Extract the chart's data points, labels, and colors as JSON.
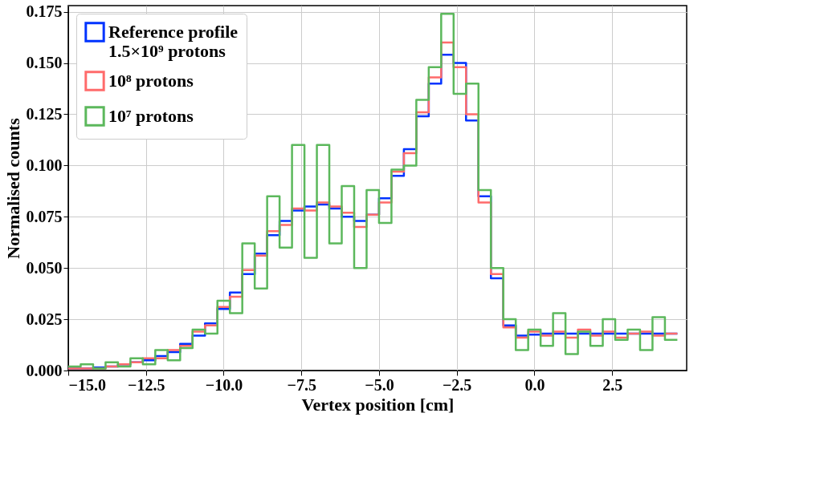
{
  "chart_data": {
    "type": "histogram",
    "xlabel": "Vertex position [cm]",
    "ylabel": "Normalised counts",
    "bins": [
      -15.0,
      -14.6,
      -14.2,
      -13.8,
      -13.4,
      -13.0,
      -12.6,
      -12.2,
      -11.8,
      -11.4,
      -11.0,
      -10.6,
      -10.2,
      -9.8,
      -9.4,
      -9.0,
      -8.6,
      -8.2,
      -7.8,
      -7.4,
      -7.0,
      -6.6,
      -6.2,
      -5.8,
      -5.4,
      -5.0,
      -4.6,
      -4.2,
      -3.8,
      -3.4,
      -3.0,
      -2.6,
      -2.2,
      -1.8,
      -1.4,
      -1.0,
      -0.6,
      -0.2,
      0.2,
      0.6,
      1.0,
      1.4,
      1.8,
      2.2,
      2.6,
      3.0,
      3.4,
      3.8,
      4.2,
      4.6
    ],
    "series": [
      {
        "name": "Reference profile\n1.5×10⁹ protons",
        "color": "#0033ff",
        "values": [
          0.001,
          0.001,
          0.0015,
          0.002,
          0.003,
          0.004,
          0.005,
          0.007,
          0.009,
          0.013,
          0.017,
          0.023,
          0.03,
          0.038,
          0.047,
          0.057,
          0.066,
          0.073,
          0.078,
          0.08,
          0.081,
          0.079,
          0.075,
          0.073,
          0.076,
          0.084,
          0.095,
          0.108,
          0.124,
          0.14,
          0.154,
          0.15,
          0.122,
          0.085,
          0.045,
          0.022,
          0.017,
          0.0175,
          0.018,
          0.018,
          0.018,
          0.018,
          0.018,
          0.018,
          0.018,
          0.018,
          0.018,
          0.018,
          0.018
        ]
      },
      {
        "name": "10⁸ protons",
        "color": "#ff6b6b",
        "values": [
          0.001,
          0.001,
          0.001,
          0.002,
          0.003,
          0.004,
          0.006,
          0.006,
          0.01,
          0.012,
          0.019,
          0.022,
          0.031,
          0.036,
          0.049,
          0.056,
          0.068,
          0.071,
          0.079,
          0.078,
          0.082,
          0.08,
          0.077,
          0.07,
          0.076,
          0.082,
          0.097,
          0.106,
          0.126,
          0.143,
          0.16,
          0.148,
          0.125,
          0.082,
          0.047,
          0.021,
          0.016,
          0.019,
          0.017,
          0.019,
          0.016,
          0.02,
          0.017,
          0.019,
          0.016,
          0.018,
          0.019,
          0.017,
          0.018
        ]
      },
      {
        "name": "10⁷ protons",
        "color": "#5cb85c",
        "values": [
          0.002,
          0.003,
          0.001,
          0.004,
          0.002,
          0.006,
          0.003,
          0.01,
          0.005,
          0.011,
          0.02,
          0.018,
          0.034,
          0.028,
          0.062,
          0.04,
          0.085,
          0.06,
          0.11,
          0.055,
          0.11,
          0.062,
          0.09,
          0.05,
          0.088,
          0.072,
          0.098,
          0.1,
          0.132,
          0.148,
          0.174,
          0.135,
          0.14,
          0.088,
          0.05,
          0.025,
          0.01,
          0.02,
          0.012,
          0.028,
          0.008,
          0.019,
          0.012,
          0.025,
          0.015,
          0.02,
          0.01,
          0.026,
          0.015
        ]
      }
    ],
    "xlim": [
      -15.0,
      4.9
    ],
    "ylim": [
      0,
      0.178
    ],
    "xticks": [
      {
        "value": -15,
        "label": "−15.0"
      },
      {
        "value": -12.5,
        "label": "−12.5"
      },
      {
        "value": -10,
        "label": "−10.0"
      },
      {
        "value": -7.5,
        "label": "−7.5"
      },
      {
        "value": -5,
        "label": "−5.0"
      },
      {
        "value": -2.5,
        "label": "−2.5"
      },
      {
        "value": 0,
        "label": "0.0"
      },
      {
        "value": 2.5,
        "label": "2.5"
      }
    ],
    "yticks": [
      {
        "value": 0,
        "label": "0.000"
      },
      {
        "value": 0.025,
        "label": "0.025"
      },
      {
        "value": 0.05,
        "label": "0.050"
      },
      {
        "value": 0.075,
        "label": "0.075"
      },
      {
        "value": 0.1,
        "label": "0.100"
      },
      {
        "value": 0.125,
        "label": "0.125"
      },
      {
        "value": 0.15,
        "label": "0.150"
      },
      {
        "value": 0.175,
        "label": "0.175"
      }
    ],
    "grid": true,
    "legend": "top left"
  }
}
